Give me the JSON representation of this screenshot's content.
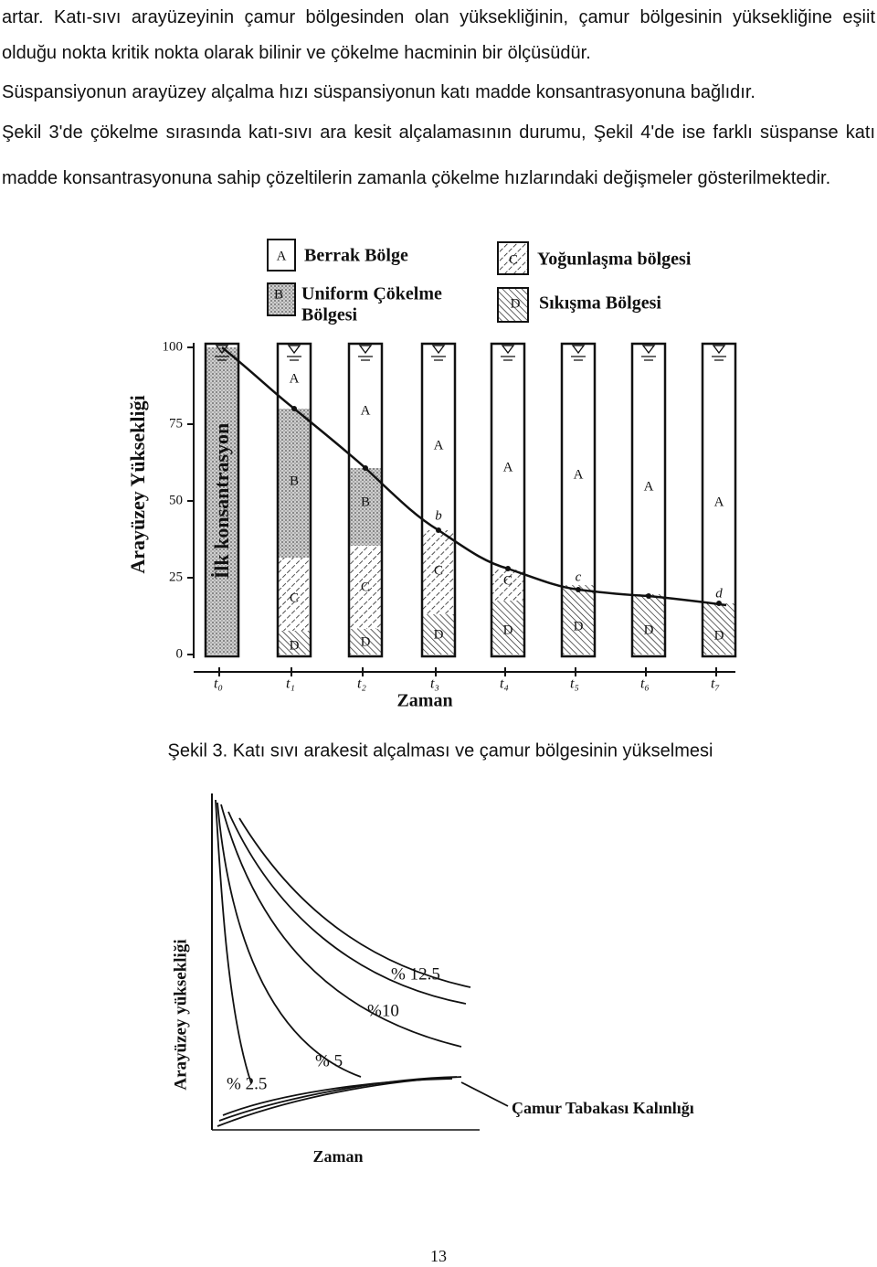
{
  "paragraphs": [
    "artar. Katı-sıvı arayüzeyinin çamur bölgesinden olan yüksekliğinin, çamur bölgesinin yüksekliğine eşiit olduğu nokta kritik nokta olarak bilinir ve çökelme hacminin bir ölçüsüdür.",
    "Süspansiyonun arayüzey alçalma hızı süspansiyonun katı madde konsantrasyonuna bağlıdır.",
    "Şekil 3'de çökelme sırasında  katı-sıvı ara kesit alçalamasının durumu, Şekil 4'de ise farklı süspanse katı madde konsantrasyonuna sahip çözeltilerin zamanla çökelme hızlarındaki değişmeler gösterilmektedir."
  ],
  "figure3": {
    "legend": [
      {
        "key": "A",
        "label": [
          "Berrak Bölge"
        ]
      },
      {
        "key": "C",
        "label": [
          "Yoğunlaşma bölgesi"
        ]
      },
      {
        "key": "B",
        "label": [
          "Uniform Çökelme",
          "Bölgesi"
        ]
      },
      {
        "key": "D",
        "label": [
          "Sıkışma Bölgesi"
        ]
      }
    ],
    "y_axis_label": "Arayüzey Yüksekliği",
    "y_ticks": [
      100,
      75,
      50,
      25,
      0
    ],
    "initial_label": "İlk konsantrasyon",
    "columns": [
      {
        "zones": []
      },
      {
        "zones": [
          "A",
          "B",
          "C",
          "D"
        ]
      },
      {
        "zones": [
          "A",
          "B",
          "C",
          "D"
        ]
      },
      {
        "zones": [
          "A",
          "C",
          "D"
        ]
      },
      {
        "zones": [
          "A",
          "C",
          "D"
        ]
      },
      {
        "zones": [
          "A",
          "D"
        ]
      },
      {
        "zones": [
          "A",
          "D"
        ]
      },
      {
        "zones": [
          "A",
          "D"
        ]
      }
    ],
    "point_labels": [
      "b",
      "c",
      "d"
    ],
    "time_labels": [
      "t₀",
      "t₁",
      "t₂",
      "t₃",
      "t₄",
      "t₅",
      "t₆",
      "t₇"
    ],
    "x_axis_label": "Zaman",
    "caption": "Şekil 3. Katı sıvı arakesit alçalması ve çamur bölgesinin yükselmesi"
  },
  "figure4": {
    "y_axis_label": "Arayüzey yüksekliği",
    "x_axis_label": "Zaman",
    "curve_labels": [
      "% 12.5",
      "%10",
      "% 5",
      "% 2.5"
    ],
    "sludge_label": "Çamur Tabakası Kalınlığı"
  },
  "page_number": "13"
}
